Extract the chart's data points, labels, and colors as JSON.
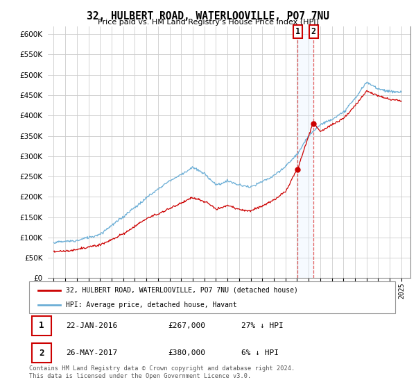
{
  "title": "32, HULBERT ROAD, WATERLOOVILLE, PO7 7NU",
  "subtitle": "Price paid vs. HM Land Registry's House Price Index (HPI)",
  "ylim": [
    0,
    620000
  ],
  "yticks": [
    0,
    50000,
    100000,
    150000,
    200000,
    250000,
    300000,
    350000,
    400000,
    450000,
    500000,
    550000,
    600000
  ],
  "sale1_date": 2016.06,
  "sale1_price": 267000,
  "sale2_date": 2017.42,
  "sale2_price": 380000,
  "legend_line1": "32, HULBERT ROAD, WATERLOOVILLE, PO7 7NU (detached house)",
  "legend_line2": "HPI: Average price, detached house, Havant",
  "table_row1": [
    "1",
    "22-JAN-2016",
    "£267,000",
    "27% ↓ HPI"
  ],
  "table_row2": [
    "2",
    "26-MAY-2017",
    "£380,000",
    "6% ↓ HPI"
  ],
  "footer": "Contains HM Land Registry data © Crown copyright and database right 2024.\nThis data is licensed under the Open Government Licence v3.0.",
  "hpi_color": "#6baed6",
  "price_color": "#cc0000",
  "vline_color": "#dd4444",
  "span_color": "#ddeeff"
}
